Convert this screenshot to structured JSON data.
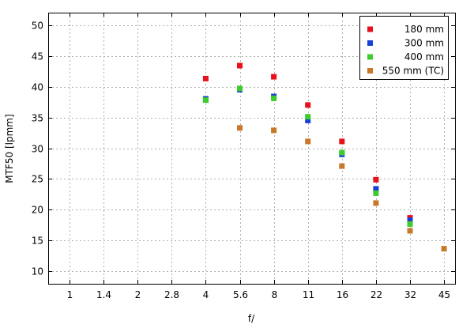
{
  "chart_data": {
    "type": "scatter",
    "xlabel": "f/",
    "ylabel": "MTF50 [lpmm]",
    "x_categories": [
      "1",
      "1.4",
      "2",
      "2.8",
      "4",
      "5.6",
      "8",
      "11",
      "16",
      "22",
      "32",
      "45"
    ],
    "ylim": [
      8,
      52
    ],
    "yticks": [
      10,
      15,
      20,
      25,
      30,
      35,
      40,
      45,
      50
    ],
    "grid": true,
    "legend_position": "top-right",
    "series": [
      {
        "name": "180 mm",
        "color": "#e8101c",
        "x": [
          "4",
          "5.6",
          "8",
          "11",
          "16",
          "22",
          "32"
        ],
        "values": [
          41.3,
          43.4,
          41.6,
          37.0,
          31.1,
          24.9,
          18.7
        ]
      },
      {
        "name": "300 mm",
        "color": "#1a3fd8",
        "x": [
          "4",
          "5.6",
          "8",
          "11",
          "16",
          "22",
          "32"
        ],
        "values": [
          38.0,
          39.5,
          38.4,
          34.5,
          29.0,
          23.4,
          18.3
        ]
      },
      {
        "name": "400 mm",
        "color": "#3ccc2c",
        "x": [
          "4",
          "5.6",
          "8",
          "11",
          "16",
          "22",
          "32"
        ],
        "values": [
          37.8,
          39.7,
          38.1,
          35.1,
          29.3,
          22.7,
          17.7
        ]
      },
      {
        "name": "550 mm (TC)",
        "color": "#c87828",
        "x": [
          "5.6",
          "8",
          "11",
          "16",
          "22",
          "32",
          "45"
        ],
        "values": [
          33.3,
          32.9,
          31.1,
          27.1,
          21.1,
          16.6,
          13.7
        ]
      }
    ]
  }
}
